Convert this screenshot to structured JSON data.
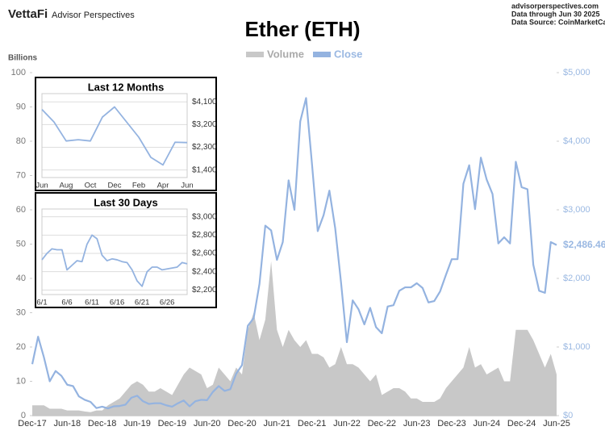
{
  "header": {
    "brand": "VettaFi",
    "subbrand": "Advisor Perspectives",
    "site": "advisorperspectives.com",
    "through": "Data through Jun 30 2025",
    "source": "Data Source: CoinMarketCap"
  },
  "chart_data": [
    {
      "type": "combo",
      "title": "Ether (ETH)",
      "y_label": "Billions",
      "categories": [
        "Dec-17",
        null,
        null,
        null,
        null,
        null,
        "Jun-18",
        null,
        null,
        null,
        null,
        null,
        "Dec-18",
        null,
        null,
        null,
        null,
        null,
        "Jun-19",
        null,
        null,
        null,
        null,
        null,
        "Dec-19",
        null,
        null,
        null,
        null,
        null,
        "Jun-20",
        null,
        null,
        null,
        null,
        null,
        "Dec-20",
        null,
        null,
        null,
        null,
        null,
        "Jun-21",
        null,
        null,
        null,
        null,
        null,
        "Dec-21",
        null,
        null,
        null,
        null,
        null,
        "Jun-22",
        null,
        null,
        null,
        null,
        null,
        "Dec-22",
        null,
        null,
        null,
        null,
        null,
        "Jun-23",
        null,
        null,
        null,
        null,
        null,
        "Dec-23",
        null,
        null,
        null,
        null,
        null,
        "Jun-24",
        null,
        null,
        null,
        null,
        null,
        "Dec-24",
        null,
        null,
        null,
        null,
        null,
        "Jun-25"
      ],
      "series": [
        {
          "name": "Volume",
          "color": "#c8c8c8",
          "axis": "y",
          "values": [
            3,
            3,
            3,
            2,
            2,
            2,
            1.5,
            1.5,
            1.5,
            1.2,
            1,
            1.5,
            1.5,
            3,
            4,
            5,
            7,
            9,
            10,
            9,
            7,
            7,
            8,
            7,
            6,
            9,
            12,
            14,
            13,
            12,
            8,
            9,
            14,
            12,
            10,
            14,
            12,
            25,
            30,
            22,
            28,
            45,
            25,
            20,
            25,
            22,
            20,
            22,
            18,
            18,
            17,
            14,
            15,
            20,
            15,
            15,
            14,
            12,
            10,
            12,
            6,
            7,
            8,
            8,
            7,
            5,
            5,
            4,
            4,
            4,
            5,
            8,
            10,
            12,
            14,
            20,
            14,
            15,
            12,
            13,
            14,
            10,
            10,
            25,
            25,
            25,
            22,
            18,
            14,
            18,
            12
          ]
        },
        {
          "name": "Close",
          "color": "#94b3e0",
          "axis": "y2",
          "values": [
            750,
            1150,
            850,
            500,
            650,
            580,
            450,
            430,
            280,
            230,
            200,
            110,
            130,
            105,
            135,
            140,
            160,
            260,
            290,
            210,
            170,
            180,
            180,
            150,
            130,
            180,
            220,
            135,
            210,
            230,
            225,
            345,
            430,
            360,
            385,
            610,
            735,
            1310,
            1420,
            1920,
            2770,
            2700,
            2270,
            2530,
            3430,
            3000,
            4290,
            4630,
            3680,
            2690,
            2920,
            3280,
            2730,
            1940,
            1070,
            1680,
            1550,
            1330,
            1570,
            1290,
            1200,
            1590,
            1610,
            1820,
            1870,
            1870,
            1930,
            1860,
            1650,
            1670,
            1810,
            2050,
            2280,
            2280,
            3380,
            3650,
            3010,
            3760,
            3440,
            3230,
            2510,
            2600,
            2510,
            3700,
            3330,
            3300,
            2200,
            1820,
            1790,
            2530,
            2486.46
          ]
        }
      ],
      "ylim": [
        0,
        100
      ],
      "yticks": [
        0,
        10,
        20,
        30,
        40,
        50,
        60,
        70,
        80,
        90,
        100
      ],
      "y2lim": [
        0,
        5000
      ],
      "y2ticks": [
        {
          "value": 0,
          "label": "$0"
        },
        {
          "value": 1000,
          "label": "$1,000"
        },
        {
          "value": 2000,
          "label": "$2,000"
        },
        {
          "value": 3000,
          "label": "$3,000"
        },
        {
          "value": 4000,
          "label": "$4,000"
        },
        {
          "value": 5000,
          "label": "$5,000"
        }
      ],
      "end_label": "$2,486.46",
      "grid": false
    },
    {
      "type": "line",
      "title": "Last 12 Months",
      "color": "#94b3e0",
      "categories": [
        "Jun",
        null,
        "Aug",
        null,
        "Oct",
        null,
        "Dec",
        null,
        "Feb",
        null,
        "Apr",
        null,
        "Jun"
      ],
      "values": [
        3800,
        3300,
        2550,
        2600,
        2550,
        3500,
        3900,
        3300,
        2700,
        1900,
        1600,
        2500,
        2486.46
      ],
      "y2lim": [
        1100,
        4300
      ],
      "y2ticks": [
        {
          "value": 1400,
          "label": "$1,400"
        },
        {
          "value": 2300,
          "label": "$2,300"
        },
        {
          "value": 3200,
          "label": "$3,200"
        },
        {
          "value": 4100,
          "label": "$4,100"
        }
      ],
      "grid": true
    },
    {
      "type": "line",
      "title": "Last 30 Days",
      "color": "#94b3e0",
      "categories": [
        "6/1",
        null,
        null,
        null,
        null,
        "6/6",
        null,
        null,
        null,
        null,
        "6/11",
        null,
        null,
        null,
        null,
        "6/16",
        null,
        null,
        null,
        null,
        "6/21",
        null,
        null,
        null,
        null,
        "6/26",
        null,
        null,
        null,
        null
      ],
      "values": [
        2530,
        2600,
        2650,
        2640,
        2640,
        2420,
        2470,
        2520,
        2510,
        2700,
        2800,
        2760,
        2580,
        2520,
        2540,
        2530,
        2510,
        2500,
        2420,
        2300,
        2240,
        2400,
        2450,
        2450,
        2420,
        2430,
        2440,
        2450,
        2500,
        2486.46
      ],
      "y2lim": [
        2150,
        3050
      ],
      "y2ticks": [
        {
          "value": 2200,
          "label": "$2,200"
        },
        {
          "value": 2400,
          "label": "$2,400"
        },
        {
          "value": 2600,
          "label": "$2,600"
        },
        {
          "value": 2800,
          "label": "$2,800"
        },
        {
          "value": 3000,
          "label": "$3,000"
        }
      ],
      "grid": true
    }
  ]
}
